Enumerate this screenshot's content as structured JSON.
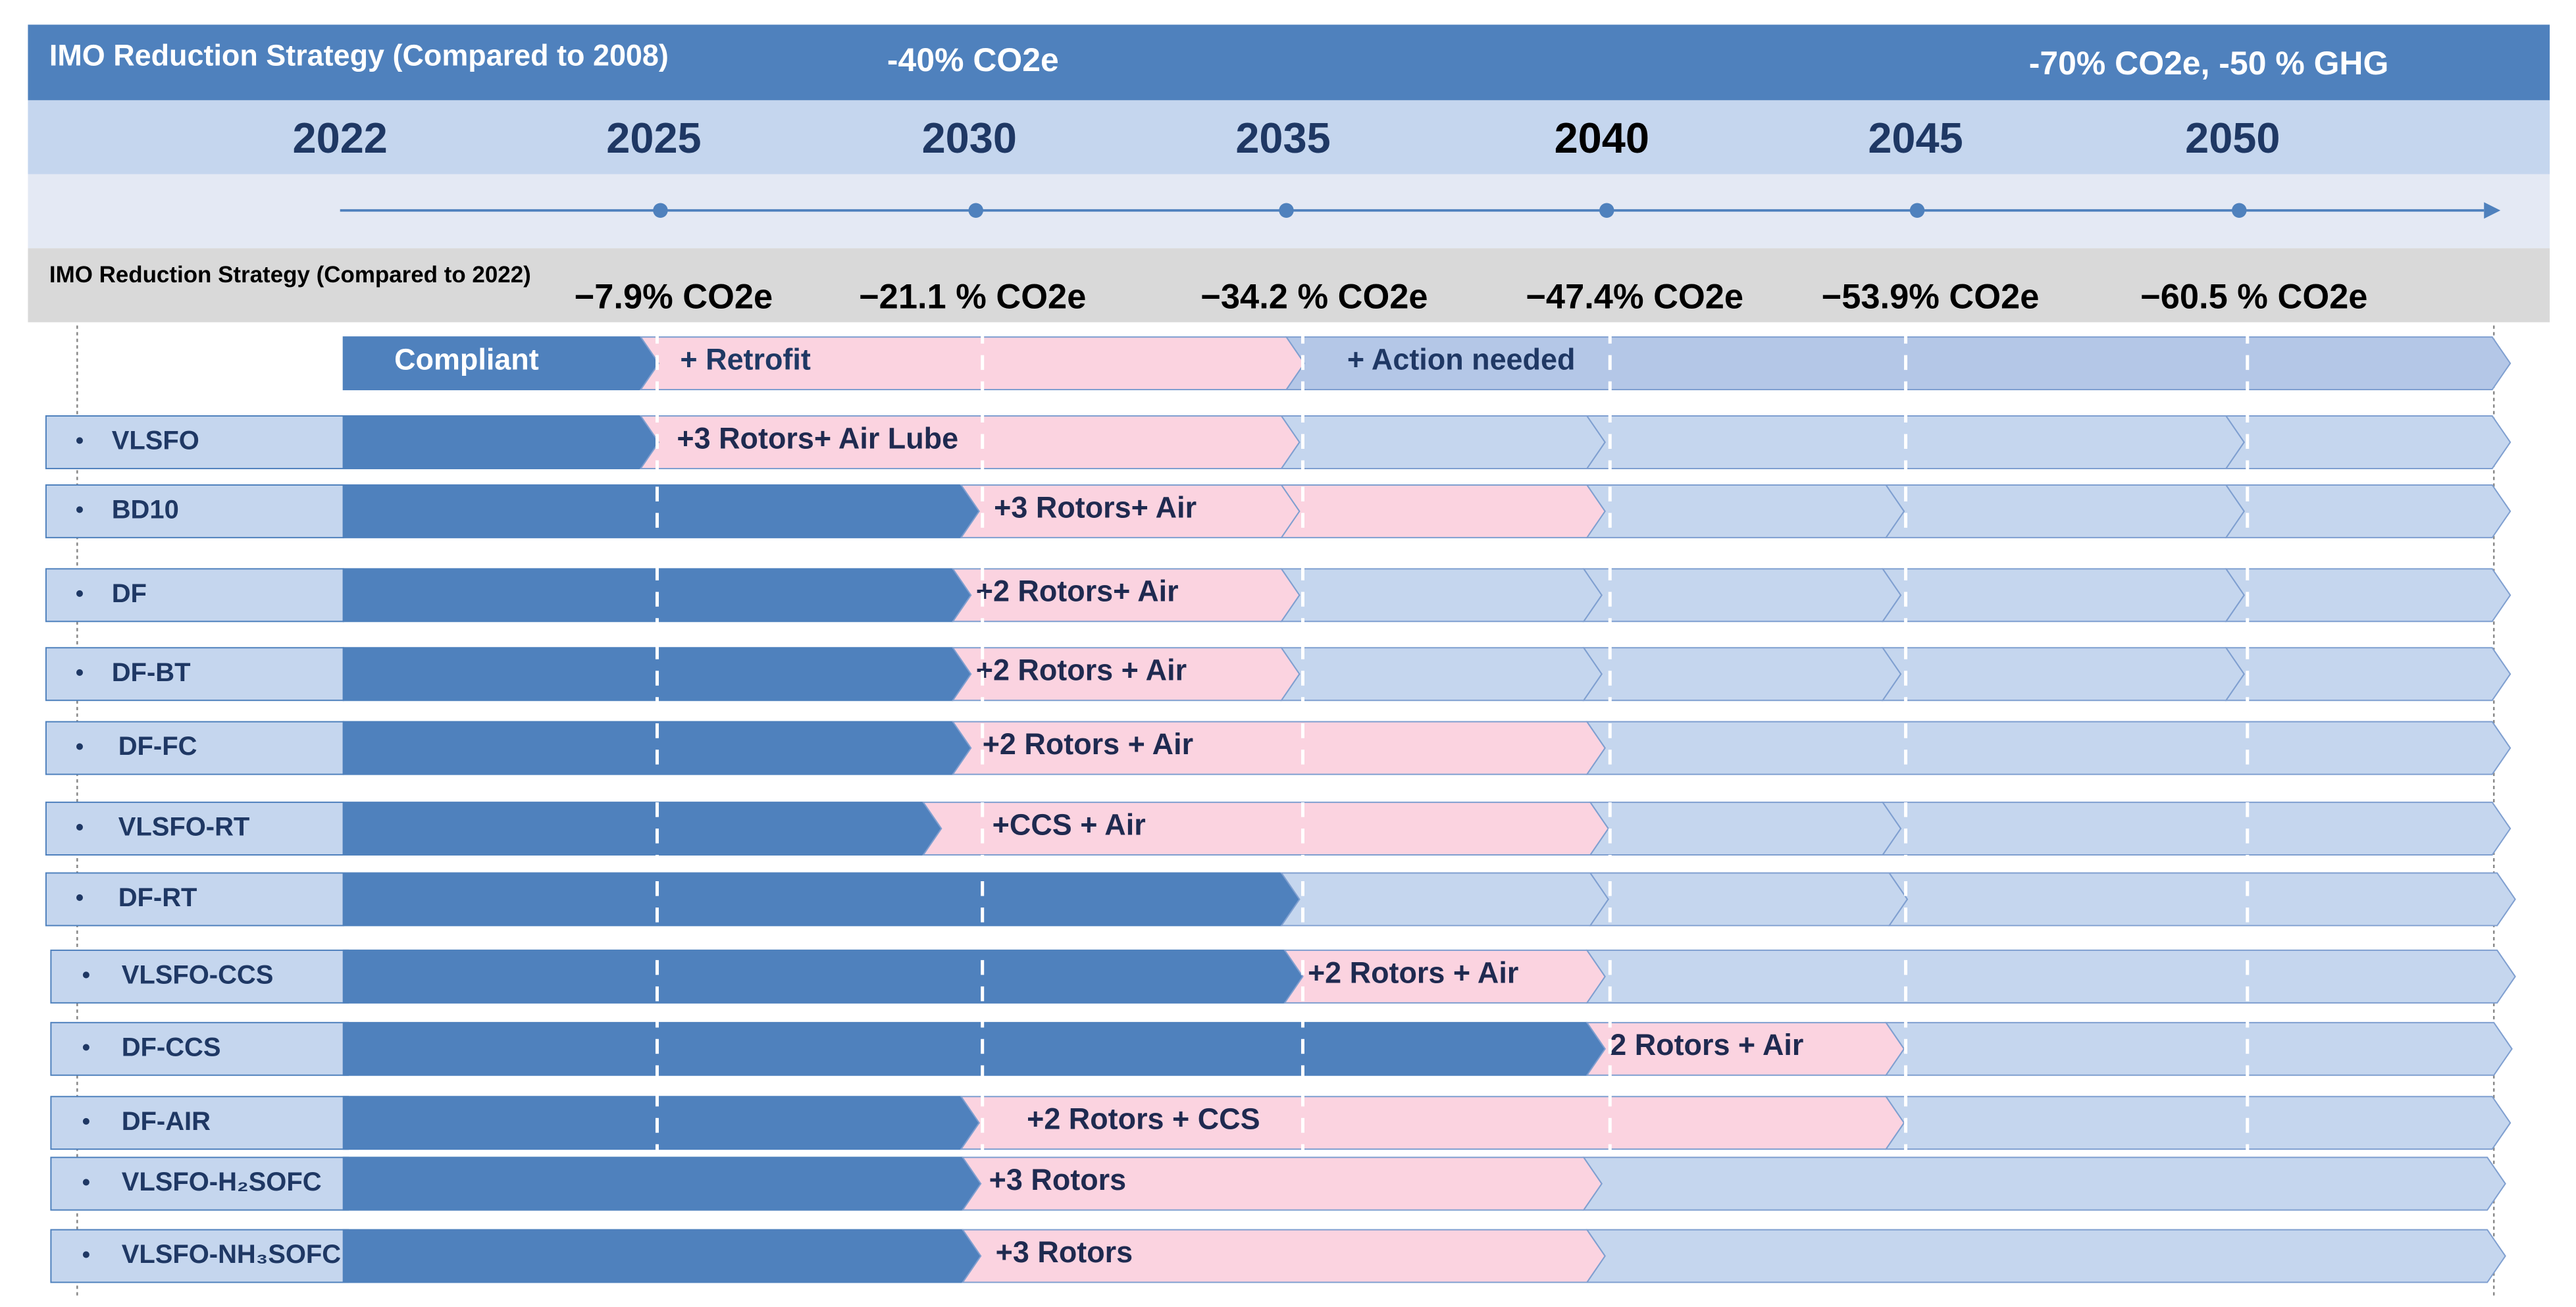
{
  "header": {
    "title": "IMO Reduction Strategy (Compared to 2008)",
    "milestone_2030": "-40% CO2e",
    "milestone_2050": "-70% CO2e, -50 % GHG"
  },
  "years": [
    "2022",
    "2025",
    "2030",
    "2035",
    "2040",
    "2045",
    "2050"
  ],
  "strategy_2022": {
    "title": "IMO Reduction Strategy (Compared to 2022)",
    "values": [
      "−7.9% CO2e",
      "−21.1 % CO2e",
      "−34.2 % CO2e",
      "−47.4% CO2e",
      "−53.9% CO2e",
      "−60.5 % CO2e"
    ]
  },
  "legend": [
    "Compliant",
    "+ Retrofit",
    "+ Action needed"
  ],
  "rows": [
    {
      "label": "VLSFO",
      "action": "+3 Rotors+ Air Lube"
    },
    {
      "label": "BD10",
      "action": "+3 Rotors+ Air"
    },
    {
      "label": "DF",
      "action": "+2 Rotors+ Air"
    },
    {
      "label": "DF-BT",
      "action": "+2 Rotors + Air"
    },
    {
      "label": "DF-FC",
      "action": "+2 Rotors + Air"
    },
    {
      "label": "VLSFO-RT",
      "action": "+CCS + Air"
    },
    {
      "label": "DF-RT",
      "action": null
    },
    {
      "label": "VLSFO-CCS",
      "action": "+2 Rotors + Air"
    },
    {
      "label": "DF-CCS",
      "action": "2 Rotors + Air"
    },
    {
      "label": "DF-AIR",
      "action": "+2 Rotors + CCS"
    },
    {
      "label": "VLSFO-H₂SOFC",
      "action": "+3 Rotors"
    },
    {
      "label": "VLSFO-NH₃SOFC",
      "action": "+3 Rotors"
    }
  ]
}
